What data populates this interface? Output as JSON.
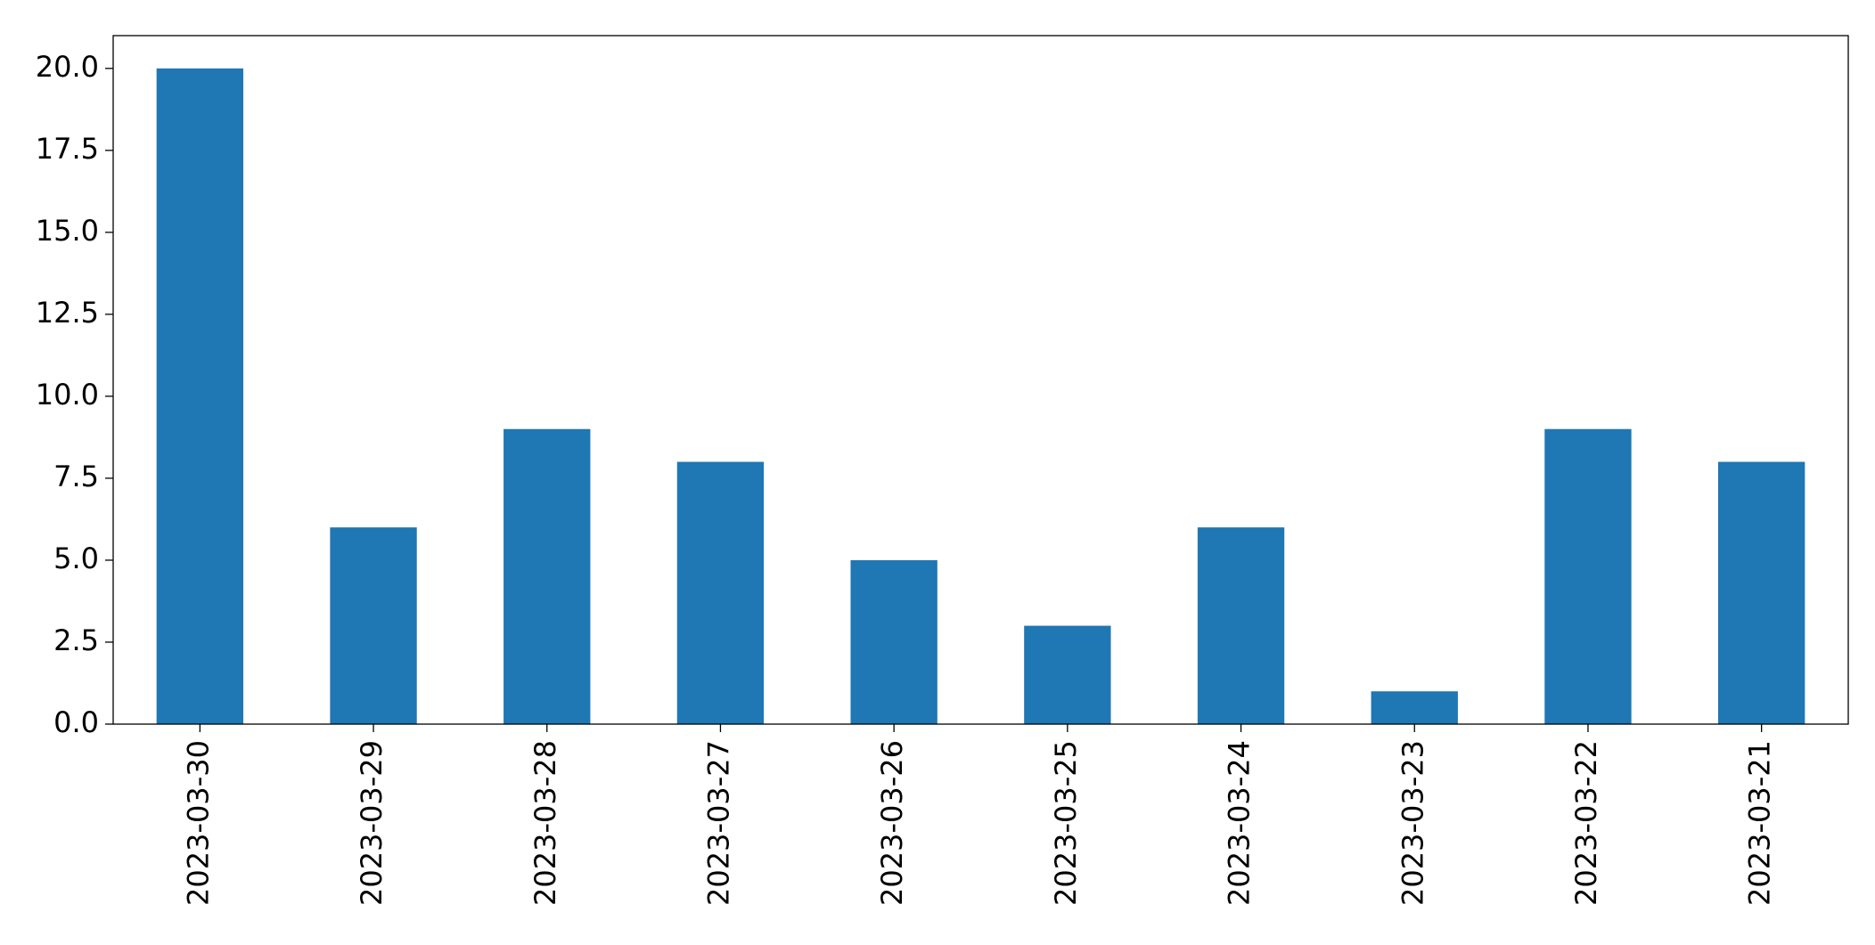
{
  "chart_data": {
    "type": "bar",
    "categories": [
      "2023-03-30",
      "2023-03-29",
      "2023-03-28",
      "2023-03-27",
      "2023-03-26",
      "2023-03-25",
      "2023-03-24",
      "2023-03-23",
      "2023-03-22",
      "2023-03-21"
    ],
    "values": [
      20,
      6,
      9,
      8,
      5,
      3,
      6,
      1,
      9,
      8
    ],
    "color": "#1f77b4",
    "ylim": [
      0,
      21
    ],
    "yticks": [
      {
        "value": 0,
        "label": "0.0"
      },
      {
        "value": 2.5,
        "label": "2.5"
      },
      {
        "value": 5,
        "label": "5.0"
      },
      {
        "value": 7.5,
        "label": "7.5"
      },
      {
        "value": 10,
        "label": "10.0"
      },
      {
        "value": 12.5,
        "label": "12.5"
      },
      {
        "value": 15,
        "label": "15.0"
      },
      {
        "value": 17.5,
        "label": "17.5"
      },
      {
        "value": 20,
        "label": "20.0"
      }
    ],
    "grid": false
  }
}
